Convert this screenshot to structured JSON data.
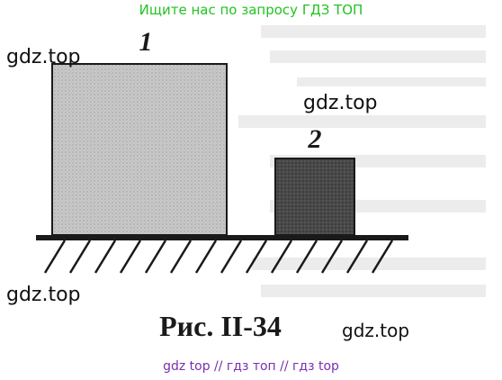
{
  "top_banner": "Ищите нас по запросу ГДЗ ТОП",
  "bottom_banner": "gdz top  //  гдз топ  //  гдз top",
  "watermark": "gdz.top",
  "figure": {
    "label_block_1": "1",
    "label_block_2": "2",
    "caption": "Рис. II-34"
  },
  "colors": {
    "block_1_fill": "#c9c9c9",
    "block_2_fill": "#4a4a4a",
    "ground": "#1a1a1a",
    "top_banner": "#22c322",
    "bottom_banner": "#7a2fb0"
  }
}
